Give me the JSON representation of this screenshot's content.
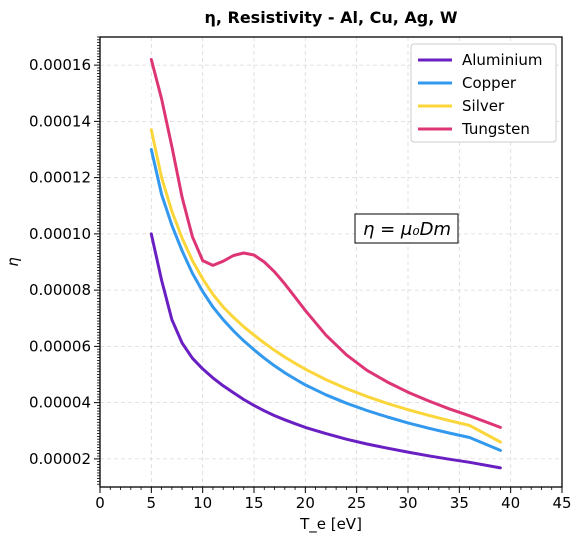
{
  "chart_data": {
    "type": "line",
    "title": "η, Resistivity - Al, Cu, Ag, W",
    "xlabel": "T_e [eV]",
    "ylabel": "η",
    "xlim": [
      0,
      45
    ],
    "ylim": [
      1e-05,
      0.00017
    ],
    "xticks": [
      "0",
      "5",
      "10",
      "15",
      "20",
      "25",
      "30",
      "35",
      "40",
      "45"
    ],
    "yticks": [
      "0.00002",
      "0.00004",
      "0.00006",
      "0.00008",
      "0.00010",
      "0.00012",
      "0.00014",
      "0.00016"
    ],
    "grid": true,
    "legend_position": "top-right",
    "annotation": "η = μ₀Dm",
    "x": [
      5,
      6,
      7,
      8,
      9,
      10,
      11,
      12,
      13,
      14,
      15,
      16,
      17,
      18,
      19,
      20,
      22,
      24,
      26,
      28,
      30,
      32,
      34,
      36,
      39
    ],
    "series": [
      {
        "name": "Aluminium",
        "color": "#6a1fc2",
        "values": [
          0.0001,
          8.35e-05,
          6.95e-05,
          6.12e-05,
          5.58e-05,
          5.2e-05,
          4.88e-05,
          4.6e-05,
          4.35e-05,
          4.11e-05,
          3.9e-05,
          3.71e-05,
          3.54e-05,
          3.39e-05,
          3.25e-05,
          3.12e-05,
          2.9e-05,
          2.7e-05,
          2.53e-05,
          2.38e-05,
          2.24e-05,
          2.11e-05,
          1.99e-05,
          1.88e-05,
          1.68e-05
        ]
      },
      {
        "name": "Copper",
        "color": "#3399ee",
        "values": [
          0.00013,
          0.000114,
          0.000103,
          9.4e-05,
          8.6e-05,
          7.95e-05,
          7.4e-05,
          6.95e-05,
          6.55e-05,
          6.2e-05,
          5.88e-05,
          5.58e-05,
          5.31e-05,
          5.06e-05,
          4.84e-05,
          4.63e-05,
          4.28e-05,
          3.98e-05,
          3.72e-05,
          3.49e-05,
          3.28e-05,
          3.09e-05,
          2.92e-05,
          2.76e-05,
          2.3e-05
        ]
      },
      {
        "name": "Silver",
        "color": "#fbd63a",
        "values": [
          0.000137,
          0.00012,
          0.000108,
          9.85e-05,
          9.05e-05,
          8.4e-05,
          7.85e-05,
          7.4e-05,
          7.03e-05,
          6.7e-05,
          6.4e-05,
          6.12e-05,
          5.86e-05,
          5.62e-05,
          5.4e-05,
          5.19e-05,
          4.82e-05,
          4.5e-05,
          4.22e-05,
          3.97e-05,
          3.75e-05,
          3.55e-05,
          3.36e-05,
          3.19e-05,
          2.6e-05
        ]
      },
      {
        "name": "Tungsten",
        "color": "#dd3575",
        "values": [
          0.000162,
          0.000148,
          0.000131,
          0.000113,
          9.9e-05,
          9.05e-05,
          8.88e-05,
          9.03e-05,
          9.23e-05,
          9.32e-05,
          9.25e-05,
          9e-05,
          8.65e-05,
          8.22e-05,
          7.75e-05,
          7.28e-05,
          6.4e-05,
          5.7e-05,
          5.15e-05,
          4.73e-05,
          4.37e-05,
          4.06e-05,
          3.78e-05,
          3.53e-05,
          3.12e-05
        ]
      }
    ]
  }
}
